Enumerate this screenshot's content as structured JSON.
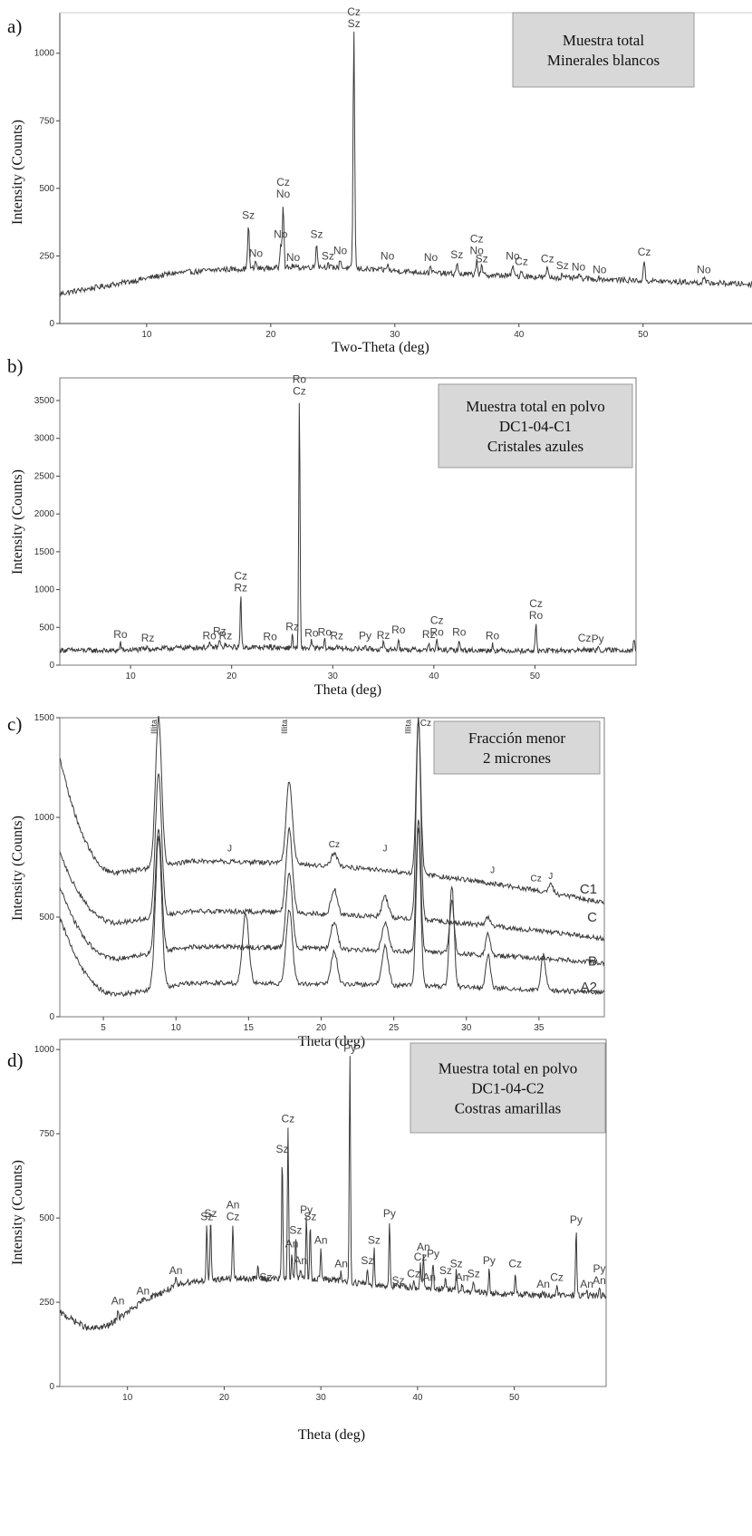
{
  "colors": {
    "line": "#3a3a3a",
    "box_fill": "#d8d8d8",
    "box_stroke": "#9a9a9a",
    "axis": "#444444",
    "frame": "#7a7a7a"
  },
  "chart_data": [
    {
      "type": "line",
      "panel_label": "a)",
      "legend_lines": [
        "Muestra total",
        "Minerales blancos"
      ],
      "xlabel": "Two-Theta (deg)",
      "ylabel": "Intensity (Counts)",
      "xlim": [
        3,
        59
      ],
      "ylim": [
        0,
        1150
      ],
      "xticks": [
        10,
        20,
        30,
        40,
        50
      ],
      "yticks": [
        0,
        250,
        500,
        750,
        1000
      ],
      "baseline": {
        "x": [
          3,
          8,
          12,
          16,
          20,
          24,
          28,
          34,
          40,
          46,
          52,
          59
        ],
        "y": [
          110,
          150,
          185,
          200,
          205,
          210,
          200,
          185,
          175,
          165,
          155,
          145
        ]
      },
      "peaks": [
        {
          "x": 18.2,
          "y": 370,
          "labels": [
            "Sz"
          ]
        },
        {
          "x": 18.8,
          "y": 230,
          "labels": [
            "No"
          ]
        },
        {
          "x": 20.8,
          "y": 300,
          "labels": [
            "No"
          ]
        },
        {
          "x": 21.0,
          "y": 450,
          "labels": [
            "Cz",
            "No"
          ]
        },
        {
          "x": 21.8,
          "y": 215,
          "labels": [
            "No"
          ]
        },
        {
          "x": 23.7,
          "y": 300,
          "labels": [
            "Sz"
          ]
        },
        {
          "x": 24.6,
          "y": 220,
          "labels": [
            "Sz"
          ]
        },
        {
          "x": 25.6,
          "y": 240,
          "labels": [
            "No"
          ]
        },
        {
          "x": 26.7,
          "y": 1080,
          "labels": [
            "Cz",
            "Sz"
          ]
        },
        {
          "x": 29.4,
          "y": 220,
          "labels": [
            "No"
          ]
        },
        {
          "x": 32.9,
          "y": 215,
          "labels": [
            "No"
          ]
        },
        {
          "x": 35.0,
          "y": 225,
          "labels": [
            "Sz"
          ]
        },
        {
          "x": 36.6,
          "y": 240,
          "labels": [
            "Cz",
            "No"
          ]
        },
        {
          "x": 37.0,
          "y": 210,
          "labels": [
            "Sz"
          ]
        },
        {
          "x": 39.5,
          "y": 220,
          "labels": [
            "No"
          ]
        },
        {
          "x": 40.2,
          "y": 200,
          "labels": [
            "Cz"
          ]
        },
        {
          "x": 42.3,
          "y": 210,
          "labels": [
            "Cz"
          ]
        },
        {
          "x": 43.5,
          "y": 185,
          "labels": [
            "Sz"
          ]
        },
        {
          "x": 44.8,
          "y": 180,
          "labels": [
            "No"
          ]
        },
        {
          "x": 46.5,
          "y": 170,
          "labels": [
            "No"
          ]
        },
        {
          "x": 50.1,
          "y": 235,
          "labels": [
            "Cz"
          ]
        },
        {
          "x": 54.9,
          "y": 170,
          "labels": [
            "No"
          ]
        }
      ]
    },
    {
      "type": "line",
      "panel_label": "b)",
      "legend_lines": [
        "Muestra total en polvo",
        "DC1-04-C1",
        "Cristales azules"
      ],
      "xlabel": "Theta (deg)",
      "ylabel": "Intensity (Counts)",
      "xlim": [
        3,
        60
      ],
      "ylim": [
        0,
        3800
      ],
      "xticks": [
        10,
        20,
        30,
        40,
        50
      ],
      "yticks": [
        0,
        500,
        1000,
        1500,
        2000,
        2500,
        3000,
        3500
      ],
      "baseline": {
        "x": [
          3,
          8,
          15,
          20,
          25,
          30,
          40,
          50,
          60
        ],
        "y": [
          200,
          190,
          230,
          240,
          230,
          220,
          200,
          190,
          200
        ]
      },
      "peaks": [
        {
          "x": 9.0,
          "y": 300,
          "labels": [
            "Ro"
          ]
        },
        {
          "x": 11.7,
          "y": 250,
          "labels": [
            "Rz"
          ]
        },
        {
          "x": 17.8,
          "y": 280,
          "labels": [
            "Ro"
          ]
        },
        {
          "x": 18.8,
          "y": 340,
          "labels": [
            "Rz"
          ]
        },
        {
          "x": 19.4,
          "y": 280,
          "labels": [
            "Rz"
          ]
        },
        {
          "x": 20.9,
          "y": 920,
          "labels": [
            "Cz",
            "Rz"
          ]
        },
        {
          "x": 23.8,
          "y": 270,
          "labels": [
            "Ro"
          ]
        },
        {
          "x": 26.0,
          "y": 400,
          "labels": [
            "Rz"
          ]
        },
        {
          "x": 26.7,
          "y": 3520,
          "labels": [
            "Ro",
            "Cz"
          ]
        },
        {
          "x": 27.9,
          "y": 320,
          "labels": [
            "Ro"
          ]
        },
        {
          "x": 29.2,
          "y": 330,
          "labels": [
            "Ro"
          ]
        },
        {
          "x": 30.4,
          "y": 280,
          "labels": [
            "Rz"
          ]
        },
        {
          "x": 33.2,
          "y": 280,
          "labels": [
            "Py"
          ]
        },
        {
          "x": 35.0,
          "y": 290,
          "labels": [
            "Rz"
          ]
        },
        {
          "x": 36.5,
          "y": 360,
          "labels": [
            "Ro"
          ]
        },
        {
          "x": 39.5,
          "y": 300,
          "labels": [
            "Rz"
          ]
        },
        {
          "x": 40.3,
          "y": 330,
          "labels": [
            "Cz",
            "Ro"
          ]
        },
        {
          "x": 42.5,
          "y": 330,
          "labels": [
            "Ro"
          ]
        },
        {
          "x": 45.8,
          "y": 280,
          "labels": [
            "Ro"
          ]
        },
        {
          "x": 50.1,
          "y": 550,
          "labels": [
            "Cz",
            "Ro"
          ]
        },
        {
          "x": 54.9,
          "y": 250,
          "labels": [
            "Cz"
          ]
        },
        {
          "x": 56.2,
          "y": 240,
          "labels": [
            "Py"
          ]
        },
        {
          "x": 59.8,
          "y": 350,
          "labels": []
        }
      ]
    },
    {
      "type": "line",
      "panel_label": "c)",
      "legend_lines": [
        "Fracción menor",
        "2 micrones"
      ],
      "xlabel": "Theta (deg)",
      "ylabel": "Intensity (Counts)",
      "xlim": [
        2,
        39.5
      ],
      "ylim": [
        0,
        1500
      ],
      "xticks": [
        5,
        10,
        15,
        20,
        25,
        30,
        35
      ],
      "yticks": [
        0,
        500,
        1000,
        1500
      ],
      "top_labels": [
        {
          "x": 8.8,
          "text": "Illita"
        },
        {
          "x": 17.8,
          "text": "Illita"
        },
        {
          "x": 26.3,
          "text": "Illita"
        },
        {
          "x": 27.2,
          "text": "Cz"
        }
      ],
      "peak_tags": [
        {
          "x": 13.7,
          "y": 830,
          "text": "J"
        },
        {
          "x": 20.9,
          "y": 850,
          "text": "Cz"
        },
        {
          "x": 24.4,
          "y": 830,
          "text": "J"
        },
        {
          "x": 31.8,
          "y": 720,
          "text": "J"
        },
        {
          "x": 34.8,
          "y": 680,
          "text": "Cz"
        },
        {
          "x": 35.8,
          "y": 690,
          "text": "J"
        }
      ],
      "series": [
        {
          "name": "C1",
          "start": 1300,
          "min": 720,
          "min_x": 6,
          "tail": 570,
          "end_label_y": 640,
          "peaks": [
            [
              8.8,
              1500
            ],
            [
              17.8,
              1180
            ],
            [
              20.9,
              820
            ],
            [
              26.7,
              1500
            ],
            [
              35.8,
              660
            ]
          ]
        },
        {
          "name": "C",
          "start": 830,
          "min": 470,
          "min_x": 6,
          "tail": 390,
          "end_label_y": 500,
          "peaks": [
            [
              8.8,
              1220
            ],
            [
              17.8,
              940
            ],
            [
              20.9,
              640
            ],
            [
              24.4,
              600
            ],
            [
              26.7,
              1500
            ],
            [
              31.5,
              500
            ]
          ]
        },
        {
          "name": "B",
          "start": 650,
          "min": 290,
          "min_x": 6,
          "tail": 270,
          "end_label_y": 280,
          "peaks": [
            [
              8.8,
              950
            ],
            [
              17.8,
              720
            ],
            [
              20.9,
              480
            ],
            [
              24.4,
              470
            ],
            [
              26.7,
              1000
            ],
            [
              29.0,
              580
            ],
            [
              31.5,
              420
            ]
          ]
        },
        {
          "name": "A2",
          "start": 500,
          "min": 110,
          "min_x": 6,
          "tail": 120,
          "end_label_y": 150,
          "peaks": [
            [
              8.8,
              900
            ],
            [
              14.8,
              520
            ],
            [
              17.8,
              540
            ],
            [
              20.9,
              330
            ],
            [
              24.4,
              350
            ],
            [
              26.7,
              950
            ],
            [
              29.0,
              660
            ],
            [
              31.5,
              310
            ],
            [
              35.3,
              310
            ]
          ]
        }
      ]
    },
    {
      "type": "line",
      "panel_label": "d)",
      "legend_lines": [
        "Muestra total en polvo",
        "DC1-04-C2",
        "Costras amarillas"
      ],
      "xlabel": "Theta (deg)",
      "ylabel": "Intensity (Counts)",
      "xlim": [
        3,
        59.5
      ],
      "ylim": [
        0,
        1030
      ],
      "xticks": [
        10,
        20,
        30,
        40,
        50
      ],
      "yticks": [
        0,
        250,
        500,
        750,
        1000
      ],
      "baseline": {
        "x": [
          3,
          6,
          8,
          12,
          16,
          20,
          25,
          30,
          36,
          42,
          48,
          54,
          59.5
        ],
        "y": [
          220,
          170,
          180,
          260,
          310,
          320,
          320,
          320,
          300,
          290,
          275,
          270,
          270
        ]
      },
      "peaks": [
        {
          "x": 9.0,
          "y": 230,
          "labels": [
            "An"
          ]
        },
        {
          "x": 11.6,
          "y": 260,
          "labels": [
            "An"
          ]
        },
        {
          "x": 15.0,
          "y": 320,
          "labels": [
            "An"
          ]
        },
        {
          "x": 18.2,
          "y": 480,
          "labels": [
            "Sz"
          ]
        },
        {
          "x": 18.6,
          "y": 490,
          "labels": [
            "Sz"
          ]
        },
        {
          "x": 20.9,
          "y": 480,
          "labels": [
            "An",
            "Cz"
          ]
        },
        {
          "x": 23.5,
          "y": 360,
          "labels": []
        },
        {
          "x": 24.3,
          "y": 300,
          "labels": [
            "Sz"
          ]
        },
        {
          "x": 26.0,
          "y": 680,
          "labels": [
            "Sz"
          ]
        },
        {
          "x": 26.6,
          "y": 770,
          "labels": [
            "Cz"
          ]
        },
        {
          "x": 27.0,
          "y": 400,
          "labels": [
            "An"
          ]
        },
        {
          "x": 27.4,
          "y": 440,
          "labels": [
            "Sz"
          ]
        },
        {
          "x": 27.9,
          "y": 350,
          "labels": [
            "An"
          ]
        },
        {
          "x": 28.5,
          "y": 500,
          "labels": [
            "Py"
          ]
        },
        {
          "x": 28.9,
          "y": 480,
          "labels": [
            "Sz"
          ]
        },
        {
          "x": 30.0,
          "y": 410,
          "labels": [
            "An"
          ]
        },
        {
          "x": 32.1,
          "y": 340,
          "labels": [
            "An"
          ]
        },
        {
          "x": 33.0,
          "y": 980,
          "labels": [
            "Py"
          ]
        },
        {
          "x": 34.8,
          "y": 350,
          "labels": [
            "Sz"
          ]
        },
        {
          "x": 35.5,
          "y": 410,
          "labels": [
            "Sz"
          ]
        },
        {
          "x": 37.1,
          "y": 490,
          "labels": [
            "Py"
          ]
        },
        {
          "x": 38.0,
          "y": 290,
          "labels": [
            "Sz"
          ]
        },
        {
          "x": 39.6,
          "y": 310,
          "labels": [
            "Cz"
          ]
        },
        {
          "x": 40.3,
          "y": 360,
          "labels": [
            "Cz"
          ]
        },
        {
          "x": 40.6,
          "y": 390,
          "labels": [
            "An"
          ]
        },
        {
          "x": 41.2,
          "y": 300,
          "labels": [
            "An"
          ]
        },
        {
          "x": 41.6,
          "y": 370,
          "labels": [
            "Py"
          ]
        },
        {
          "x": 42.9,
          "y": 320,
          "labels": [
            "Sz"
          ]
        },
        {
          "x": 44.0,
          "y": 340,
          "labels": [
            "Sz"
          ]
        },
        {
          "x": 44.6,
          "y": 300,
          "labels": [
            "An"
          ]
        },
        {
          "x": 45.8,
          "y": 310,
          "labels": [
            "Sz"
          ]
        },
        {
          "x": 47.4,
          "y": 350,
          "labels": [
            "Py"
          ]
        },
        {
          "x": 50.1,
          "y": 340,
          "labels": [
            "Cz"
          ]
        },
        {
          "x": 53.0,
          "y": 280,
          "labels": [
            "An"
          ]
        },
        {
          "x": 54.4,
          "y": 300,
          "labels": [
            "Cz"
          ]
        },
        {
          "x": 56.4,
          "y": 470,
          "labels": [
            "Py"
          ]
        },
        {
          "x": 57.5,
          "y": 280,
          "labels": [
            "An"
          ]
        },
        {
          "x": 58.8,
          "y": 290,
          "labels": [
            "Py",
            "An"
          ]
        }
      ]
    }
  ]
}
